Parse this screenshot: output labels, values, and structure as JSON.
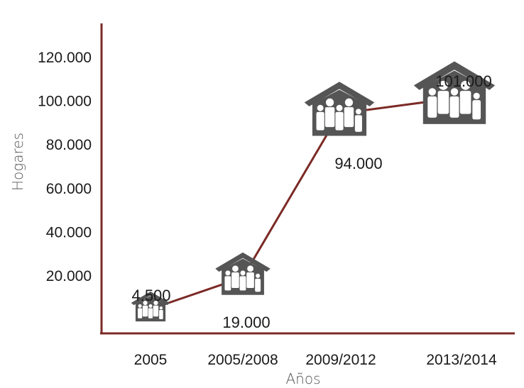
{
  "chart_data": {
    "type": "line",
    "categories": [
      "2005",
      "2005/2008",
      "2009/2012",
      "2013/2014"
    ],
    "series": [
      {
        "values": [
          4500,
          19000,
          94000,
          101000
        ]
      }
    ],
    "data_labels": [
      "4.500",
      "19.000",
      "94.000",
      "101.000"
    ],
    "y_ticks": [
      {
        "value": 20000,
        "label": "20.000"
      },
      {
        "value": 40000,
        "label": "40.000"
      },
      {
        "value": 60000,
        "label": "60.000"
      },
      {
        "value": 80000,
        "label": "80.000"
      },
      {
        "value": 100000,
        "label": "100.000"
      },
      {
        "value": 120000,
        "label": "120.000"
      }
    ],
    "xlabel": "Años",
    "ylabel": "Hogares",
    "marker_icon": "house-family-icon",
    "grid": false,
    "colors": {
      "axis": "#7b2a26",
      "line": "#7b2a26",
      "icon": "#555555"
    }
  }
}
